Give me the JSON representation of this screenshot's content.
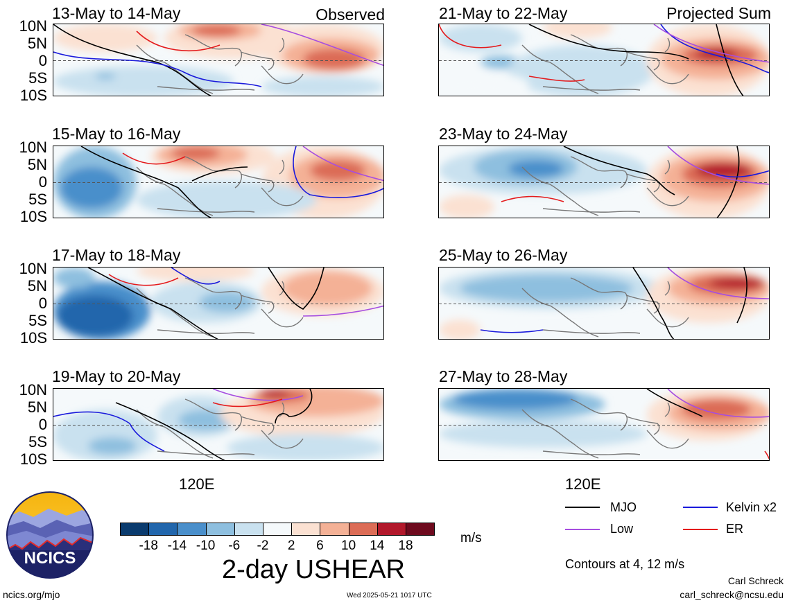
{
  "panels": [
    {
      "id": "p1",
      "title": "13-May to 14-May",
      "tag": "Observed",
      "pattern": "a"
    },
    {
      "id": "p2",
      "title": "15-May to 16-May",
      "tag": "",
      "pattern": "b"
    },
    {
      "id": "p3",
      "title": "17-May to 18-May",
      "tag": "",
      "pattern": "c"
    },
    {
      "id": "p4",
      "title": "19-May to 20-May",
      "tag": "",
      "pattern": "d"
    },
    {
      "id": "p5",
      "title": "21-May to 22-May",
      "tag": "Projected Sum",
      "pattern": "e"
    },
    {
      "id": "p6",
      "title": "23-May to 24-May",
      "tag": "",
      "pattern": "f"
    },
    {
      "id": "p7",
      "title": "25-May to 26-May",
      "tag": "",
      "pattern": "g"
    },
    {
      "id": "p8",
      "title": "27-May to 28-May",
      "tag": "",
      "pattern": "h"
    }
  ],
  "lat_labels": [
    "10N",
    "5N",
    "0",
    "5S",
    "10S"
  ],
  "lon_label": "120E",
  "colorbar": {
    "ticks": [
      "-18",
      "-14",
      "-10",
      "-6",
      "-2",
      "2",
      "6",
      "10",
      "14",
      "18"
    ],
    "colors": [
      "#0a3b6e",
      "#2166ac",
      "#4a8fcb",
      "#8ebfdf",
      "#c9e1ef",
      "#f5f9fb",
      "#fbe1d2",
      "#f4b196",
      "#dc6c56",
      "#b2182b",
      "#6e0a1e"
    ],
    "unit": "m/s",
    "title": "2-day USHEAR"
  },
  "legend": {
    "items": [
      {
        "label": "MJO",
        "color": "#000000"
      },
      {
        "label": "Kelvin x2",
        "color": "#1a1adc"
      },
      {
        "label": "Low",
        "color": "#a64de0"
      },
      {
        "label": "ER",
        "color": "#e41a1c"
      }
    ],
    "note": "Contours at 4, 12 m/s"
  },
  "logo": {
    "text": "NCICS"
  },
  "footer": {
    "url": "ncics.org/mjo",
    "timestamp": "Wed 2025-05-21 1017 UTC",
    "author": "Carl Schreck",
    "email": "carl_schreck@ncsu.edu"
  }
}
